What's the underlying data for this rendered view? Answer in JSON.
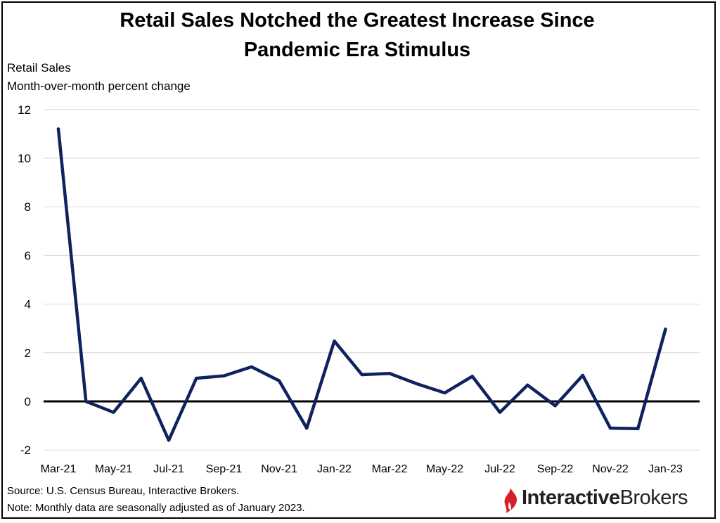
{
  "title": {
    "line1": "Retail Sales Notched the Greatest Increase Since",
    "line2": "Pandemic Era Stimulus"
  },
  "ylabel_line1": "Retail Sales",
  "ylabel_line2": "Month-over-month percent change",
  "notes": {
    "source": "Source: U.S. Census Bureau, Interactive Brokers.",
    "note": "Note: Monthly data are seasonally adjusted as of January 2023."
  },
  "logo": {
    "part1": "Interactive",
    "part2": "Brokers",
    "colors": {
      "mark": "#d81f26",
      "text": "#231f20"
    }
  },
  "colors": {
    "line": "#0f2260",
    "zero_line": "#000000",
    "grid": "#d9d9d9"
  },
  "chart_data": {
    "type": "line",
    "x": [
      "Mar-21",
      "Apr-21",
      "May-21",
      "Jun-21",
      "Jul-21",
      "Aug-21",
      "Sep-21",
      "Oct-21",
      "Nov-21",
      "Dec-21",
      "Jan-22",
      "Feb-22",
      "Mar-22",
      "Apr-22",
      "May-22",
      "Jun-22",
      "Jul-22",
      "Aug-22",
      "Sep-22",
      "Oct-22",
      "Nov-22",
      "Dec-22",
      "Jan-23"
    ],
    "tick_labels": [
      "Mar-21",
      "May-21",
      "Jul-21",
      "Sep-21",
      "Nov-21",
      "Jan-22",
      "Mar-22",
      "May-22",
      "Jul-22",
      "Sep-22",
      "Nov-22",
      "Jan-23"
    ],
    "series": [
      {
        "values": [
          11.2,
          0.0,
          -0.45,
          0.95,
          -1.6,
          0.95,
          1.05,
          1.42,
          0.85,
          -1.1,
          2.48,
          1.1,
          1.15,
          0.72,
          0.35,
          1.03,
          -0.45,
          0.67,
          -0.18,
          1.07,
          -1.1,
          -1.12,
          2.97
        ]
      }
    ],
    "ylim": [
      -2,
      12
    ],
    "yticks": [
      -2,
      0,
      2,
      4,
      6,
      8,
      10,
      12
    ],
    "grid": true,
    "legend": "none"
  }
}
